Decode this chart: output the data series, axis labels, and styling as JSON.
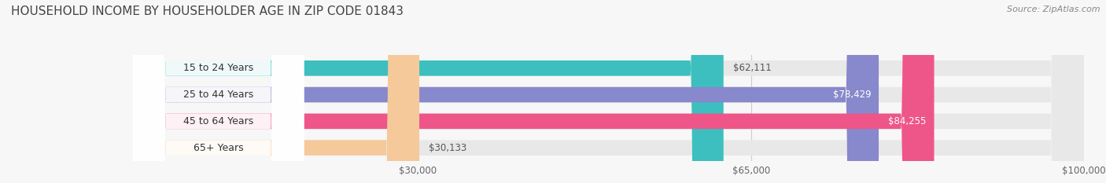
{
  "title": "HOUSEHOLD INCOME BY HOUSEHOLDER AGE IN ZIP CODE 01843",
  "source": "Source: ZipAtlas.com",
  "categories": [
    "15 to 24 Years",
    "25 to 44 Years",
    "45 to 64 Years",
    "65+ Years"
  ],
  "values": [
    62111,
    78429,
    84255,
    30133
  ],
  "bar_colors": [
    "#3dbfbf",
    "#8888cc",
    "#ee5588",
    "#f5c99a"
  ],
  "bar_labels": [
    "$62,111",
    "$78,429",
    "$84,255",
    "$30,133"
  ],
  "label_colors": [
    "#555555",
    "#ffffff",
    "#ffffff",
    "#555555"
  ],
  "label_inside": [
    false,
    true,
    true,
    false
  ],
  "xmax": 100000,
  "xticks": [
    30000,
    65000,
    100000
  ],
  "xtick_labels": [
    "$30,000",
    "$65,000",
    "$100,000"
  ],
  "background_color": "#f7f7f7",
  "bar_bg_color": "#e8e8e8",
  "title_fontsize": 11,
  "source_fontsize": 8
}
